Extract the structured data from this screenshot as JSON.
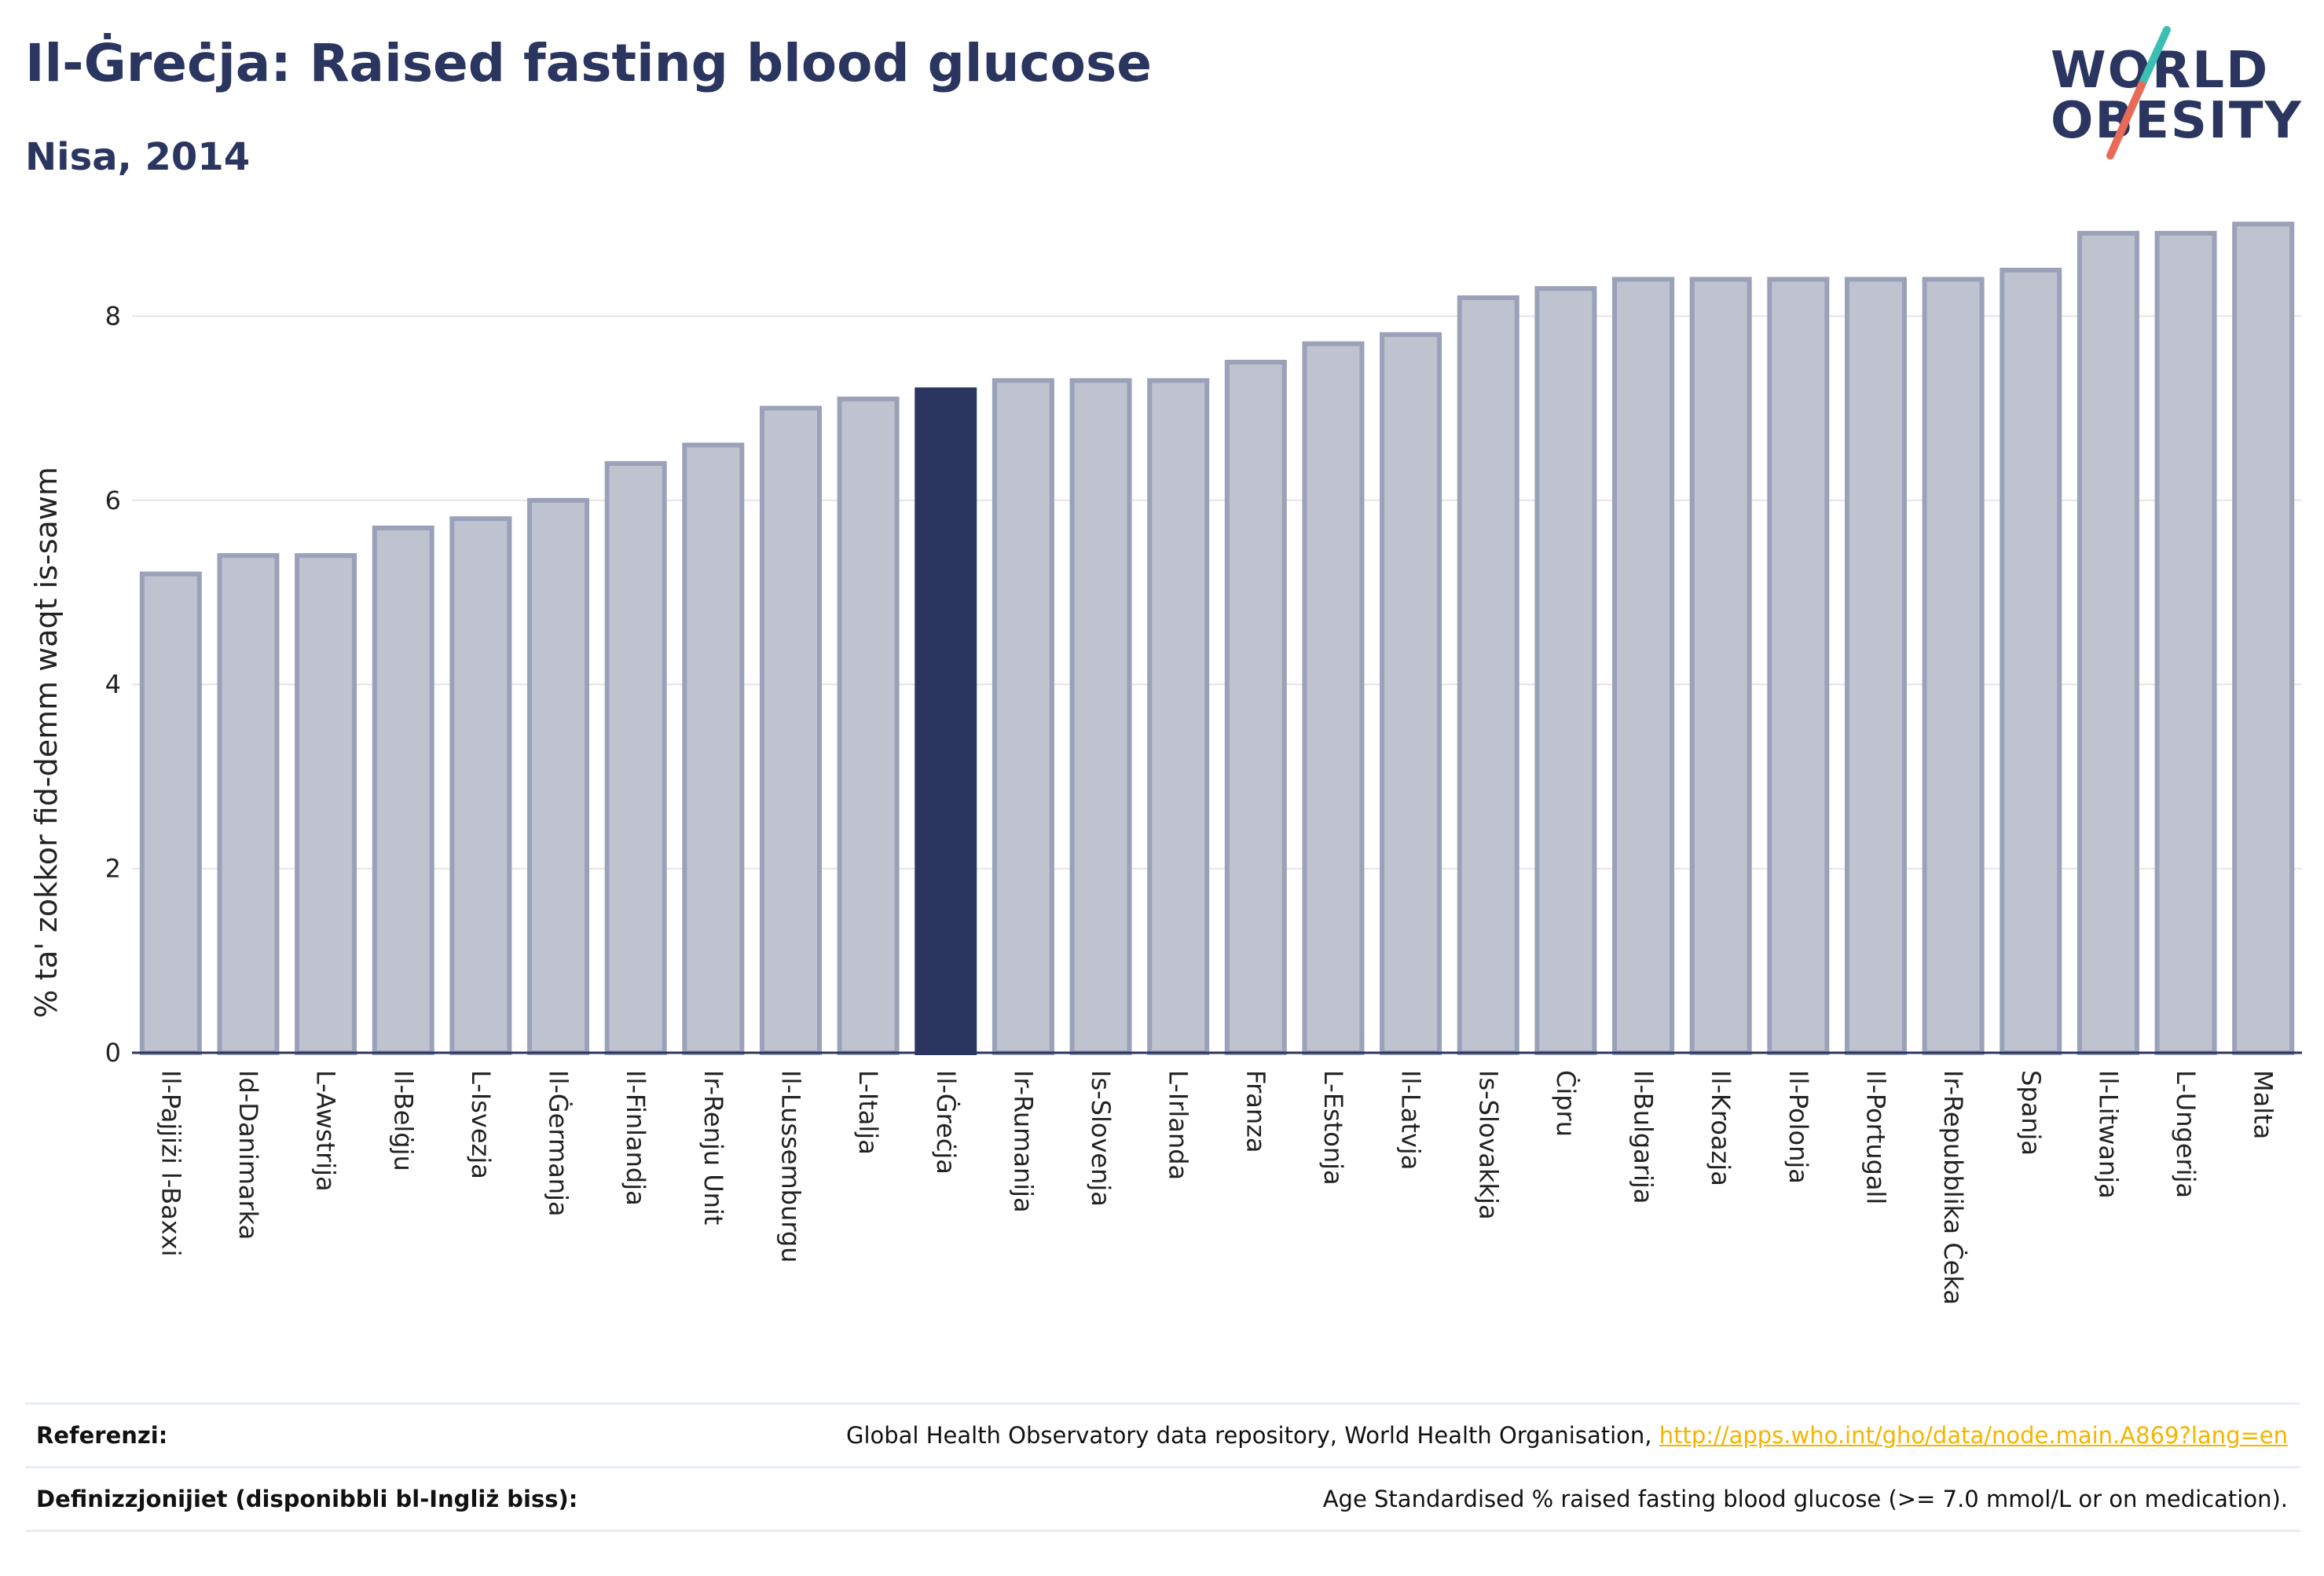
{
  "header": {
    "title": "Il-Ġreċja: Raised fasting blood glucose",
    "subtitle": "Nisa, 2014"
  },
  "logo": {
    "line1": "WORLD",
    "line2": "OBESITY",
    "colors": {
      "text": "#2a3560",
      "slash_top": "#3bbfb3",
      "slash_bottom": "#e96a57"
    }
  },
  "colors": {
    "bar": "#bfc3d0",
    "bar_stroke": "#9aa1b8",
    "highlight": "#2a3560",
    "grid": "#e3e5ea",
    "axis": "#2a3560"
  },
  "chart_data": {
    "type": "bar",
    "title": "Il-Ġreċja: Raised fasting blood glucose",
    "subtitle": "Nisa, 2014",
    "ylabel": "% ta' zokkor fid-demm waqt is-sawm",
    "xlabel": "",
    "ylim": [
      0,
      9.3
    ],
    "yticks": [
      0,
      2,
      4,
      6,
      8
    ],
    "grid": true,
    "highlight": "Il-Ġreċja",
    "categories": [
      "Il-Pajjiżi l-Baxxi",
      "Id-Danimarka",
      "L-Awstrija",
      "Il-Belġju",
      "L-Isvezja",
      "Il-Ġermanja",
      "Il-Finlandja",
      "Ir-Renju Unit",
      "Il-Lussemburgu",
      "L-Italja",
      "Il-Ġreċja",
      "Ir-Rumanija",
      "Is-Slovenja",
      "L-Irlanda",
      "Franza",
      "L-Estonja",
      "Il-Latvja",
      "Is-Slovakkja",
      "Ċipru",
      "Il-Bulgarija",
      "Il-Kroazja",
      "Il-Polonja",
      "Il-Portugall",
      "Ir-Repubblika Ċeka",
      "Spanja",
      "Il-Litwanja",
      "L-Ungerija",
      "Malta"
    ],
    "values": [
      5.2,
      5.4,
      5.4,
      5.7,
      5.8,
      6.0,
      6.4,
      6.6,
      7.0,
      7.1,
      7.2,
      7.3,
      7.3,
      7.3,
      7.5,
      7.7,
      7.8,
      8.2,
      8.3,
      8.4,
      8.4,
      8.4,
      8.4,
      8.4,
      8.5,
      8.9,
      8.9,
      9.0
    ]
  },
  "footer": {
    "references_label": "Referenzi:",
    "references_text": "Global Health Observatory data repository, World Health Organisation, ",
    "references_link": "http://apps.who.int/gho/data/node.main.A869?lang=en",
    "definitions_label": "Definizzjonijiet (disponibbli bl-Ingliż biss):",
    "definitions_text": "Age Standardised % raised fasting blood glucose (>= 7.0 mmol/L or on medication)."
  }
}
